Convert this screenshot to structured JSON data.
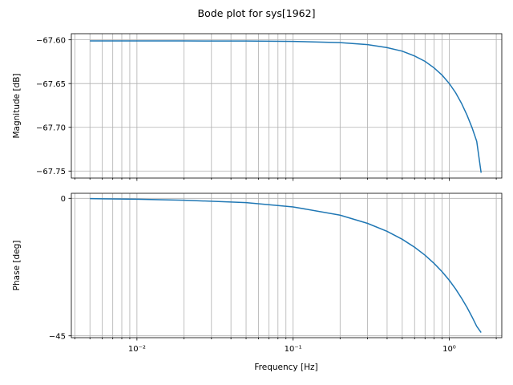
{
  "title": "Bode plot for sys[1962]",
  "chart_data": [
    {
      "type": "line",
      "panel": "magnitude",
      "title": "Bode plot for sys[1962]",
      "xlabel": "",
      "ylabel": "Magnitude [dB]",
      "xscale": "log",
      "xlim": [
        0.0038,
        2.17
      ],
      "ylim": [
        -67.758,
        -67.593
      ],
      "yticks": [
        -67.6,
        -67.65,
        -67.7,
        -67.75
      ],
      "ytick_labels": [
        "−67.60",
        "−67.65",
        "−67.70",
        "−67.75"
      ],
      "grid": true,
      "line_color": "#1f77b4",
      "series": [
        {
          "x": [
            0.005,
            0.01,
            0.02,
            0.05,
            0.1,
            0.2,
            0.3,
            0.4,
            0.5,
            0.6,
            0.7,
            0.8,
            0.9,
            1.0,
            1.1,
            1.2,
            1.3,
            1.4,
            1.5,
            1.6
          ],
          "y": [
            -67.6013,
            -67.6013,
            -67.6013,
            -67.6014,
            -67.6018,
            -67.6032,
            -67.6055,
            -67.6089,
            -67.613,
            -67.6185,
            -67.6246,
            -67.6321,
            -67.6404,
            -67.6499,
            -67.6606,
            -67.6728,
            -67.6861,
            -67.7004,
            -67.7161,
            -67.7519
          ]
        }
      ]
    },
    {
      "type": "line",
      "panel": "phase",
      "title": "",
      "xlabel": "Frequency [Hz]",
      "ylabel": "Phase [deg]",
      "xscale": "log",
      "xlim": [
        0.0038,
        2.17
      ],
      "ylim": [
        -45.6,
        1.65
      ],
      "yticks": [
        0,
        -45
      ],
      "ytick_labels": [
        "0",
        "−45"
      ],
      "xticks": [
        0.01,
        0.1,
        1
      ],
      "xtick_labels": [
        "10⁻²",
        "10⁻¹",
        "10⁰"
      ],
      "grid": true,
      "line_color": "#1f77b4",
      "series": [
        {
          "x": [
            0.005,
            0.01,
            0.02,
            0.05,
            0.1,
            0.2,
            0.3,
            0.4,
            0.5,
            0.6,
            0.7,
            0.8,
            0.9,
            1.0,
            1.1,
            1.2,
            1.3,
            1.4,
            1.5,
            1.6
          ],
          "y": [
            -0.1,
            -0.3,
            -0.6,
            -1.4,
            -2.8,
            -5.5,
            -8.2,
            -10.8,
            -13.4,
            -16.0,
            -18.6,
            -21.3,
            -24.0,
            -26.8,
            -29.7,
            -32.7,
            -35.7,
            -38.8,
            -41.9,
            -43.9
          ]
        }
      ]
    }
  ]
}
